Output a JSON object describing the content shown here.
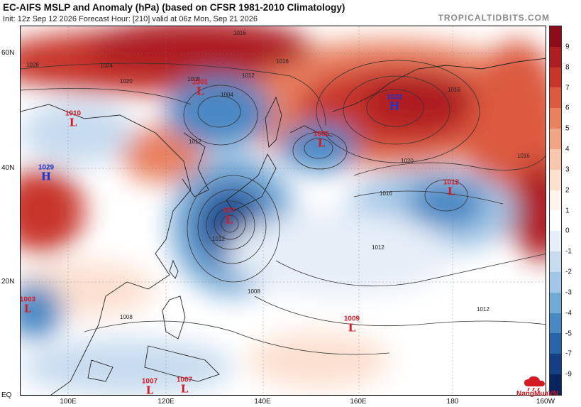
{
  "header": {
    "title": "EC-AIFS MSLP and Anomaly (hPa) (based on CFSR 1981-2010 Climatology)",
    "subtitle": "Init: 12z Sep 12 2026   Forecast Hour: [210]   valid at 06z Mon, Sep 21 2026",
    "brand": "TROPICALTIDBITS.COM"
  },
  "axes": {
    "lat_labels": [
      "60N",
      "40N",
      "20N",
      "EQ"
    ],
    "lon_labels": [
      "100E",
      "120E",
      "140E",
      "160E",
      "180",
      "160W"
    ]
  },
  "colorbar": {
    "labels": [
      "9",
      "8",
      "7",
      "6",
      "5",
      "4",
      "3",
      "2",
      "1",
      "0",
      "-1",
      "-2",
      "-3",
      "-4",
      "-5",
      "-7",
      "-9"
    ],
    "colors": [
      "#8c0d17",
      "#ad1e22",
      "#c8352b",
      "#dc5a3f",
      "#e9805e",
      "#f2a487",
      "#f8c6ad",
      "#fce0d0",
      "#fff4ec",
      "#ffffff",
      "#e6eef8",
      "#c7dbef",
      "#a2c6e6",
      "#74a9d6",
      "#4a88c4",
      "#2a64a8",
      "#163f83",
      "#0a2460"
    ]
  },
  "centers": [
    {
      "type": "L",
      "value": "977"
    },
    {
      "type": "L",
      "value": "1001"
    },
    {
      "type": "L",
      "value": "1005"
    },
    {
      "type": "L",
      "value": "1012"
    },
    {
      "type": "L",
      "value": "1010"
    },
    {
      "type": "L",
      "value": "1003"
    },
    {
      "type": "L",
      "value": "1009"
    },
    {
      "type": "L",
      "value": "1007"
    },
    {
      "type": "L",
      "value": "1007"
    },
    {
      "type": "H",
      "value": "1023"
    },
    {
      "type": "H",
      "value": "1029"
    }
  ],
  "isobar_labels": [
    "1016",
    "1012",
    "1008",
    "1004",
    "1020",
    "1016",
    "1012",
    "1008",
    "1012",
    "1016",
    "1016",
    "1020",
    "1024",
    "1028",
    "1016",
    "1012",
    "1008",
    "1012"
  ],
  "logo": {
    "text": "NangMuaVN"
  }
}
